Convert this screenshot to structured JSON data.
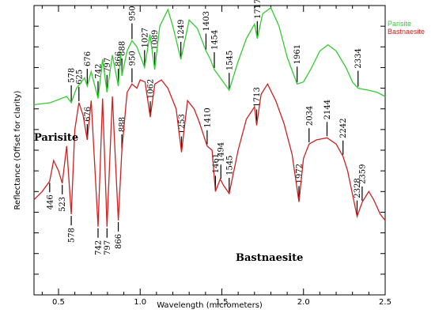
{
  "chart_data": {
    "type": "line",
    "xlabel": "Wavelength (micrometers)",
    "ylabel": "Reflectance (Offset for clarity)",
    "xlim": [
      0.35,
      2.5
    ],
    "x_ticks": [
      "0.5",
      "1.0",
      "1.5",
      "2.0",
      "2.5"
    ],
    "x_tick_values": [
      0.5,
      1.0,
      1.5,
      2.0,
      2.5
    ],
    "ylim": [
      0,
      14
    ],
    "legend_position": "top-right",
    "series": [
      {
        "name": "Parisite",
        "color": "#33cc33",
        "curve_label": "Parisite",
        "points": [
          [
            0.35,
            9.2
          ],
          [
            0.45,
            9.3
          ],
          [
            0.55,
            9.6
          ],
          [
            0.578,
            9.3
          ],
          [
            0.61,
            10.0
          ],
          [
            0.66,
            10.5
          ],
          [
            0.676,
            10.1
          ],
          [
            0.7,
            10.8
          ],
          [
            0.742,
            9.5
          ],
          [
            0.77,
            11.4
          ],
          [
            0.797,
            9.8
          ],
          [
            0.83,
            11.6
          ],
          [
            0.866,
            10.1
          ],
          [
            0.88,
            11.7
          ],
          [
            0.888,
            10.6
          ],
          [
            0.92,
            11.8
          ],
          [
            0.95,
            12.3
          ],
          [
            0.98,
            12.0
          ],
          [
            1.027,
            11.0
          ],
          [
            1.06,
            12.6
          ],
          [
            1.089,
            10.9
          ],
          [
            1.12,
            13.0
          ],
          [
            1.17,
            13.8
          ],
          [
            1.2,
            13.0
          ],
          [
            1.249,
            11.4
          ],
          [
            1.3,
            13.3
          ],
          [
            1.35,
            12.9
          ],
          [
            1.403,
            11.8
          ],
          [
            1.43,
            11.4
          ],
          [
            1.454,
            10.9
          ],
          [
            1.5,
            10.4
          ],
          [
            1.545,
            9.9
          ],
          [
            1.6,
            11.3
          ],
          [
            1.65,
            12.4
          ],
          [
            1.7,
            13.1
          ],
          [
            1.717,
            12.4
          ],
          [
            1.75,
            13.6
          ],
          [
            1.8,
            13.9
          ],
          [
            1.85,
            13.0
          ],
          [
            1.9,
            11.5
          ],
          [
            1.961,
            10.2
          ],
          [
            2.0,
            10.3
          ],
          [
            2.05,
            11.0
          ],
          [
            2.1,
            11.8
          ],
          [
            2.15,
            12.1
          ],
          [
            2.2,
            11.8
          ],
          [
            2.26,
            11.0
          ],
          [
            2.3,
            10.3
          ],
          [
            2.334,
            10.0
          ],
          [
            2.4,
            9.9
          ],
          [
            2.45,
            9.8
          ],
          [
            2.5,
            9.6
          ]
        ],
        "annotations": [
          {
            "x": 0.578,
            "label": "578"
          },
          {
            "x": 0.676,
            "label": "676"
          },
          {
            "x": 0.742,
            "label": "742"
          },
          {
            "x": 0.797,
            "label": "797"
          },
          {
            "x": 0.866,
            "label": "866"
          },
          {
            "x": 0.888,
            "label": "888"
          },
          {
            "x": 0.95,
            "label": "950"
          },
          {
            "x": 1.027,
            "label": "1027"
          },
          {
            "x": 1.089,
            "label": "1089"
          },
          {
            "x": 1.249,
            "label": "1249"
          },
          {
            "x": 1.403,
            "label": "1403"
          },
          {
            "x": 1.454,
            "label": "1454"
          },
          {
            "x": 1.545,
            "label": "1545"
          },
          {
            "x": 1.717,
            "label": "1717"
          },
          {
            "x": 1.961,
            "label": "1961"
          },
          {
            "x": 2.334,
            "label": "2334"
          }
        ]
      },
      {
        "name": "Bastnaesite",
        "color": "#cc2222",
        "curve_label": "Bastnaesite",
        "points": [
          [
            0.35,
            4.6
          ],
          [
            0.4,
            5.0
          ],
          [
            0.446,
            5.5
          ],
          [
            0.47,
            6.5
          ],
          [
            0.5,
            6.0
          ],
          [
            0.523,
            5.4
          ],
          [
            0.55,
            7.2
          ],
          [
            0.578,
            3.9
          ],
          [
            0.6,
            8.0
          ],
          [
            0.625,
            9.3
          ],
          [
            0.65,
            8.7
          ],
          [
            0.676,
            7.5
          ],
          [
            0.7,
            9.4
          ],
          [
            0.742,
            3.3
          ],
          [
            0.77,
            9.5
          ],
          [
            0.797,
            3.3
          ],
          [
            0.83,
            9.6
          ],
          [
            0.866,
            3.6
          ],
          [
            0.888,
            7.0
          ],
          [
            0.92,
            9.8
          ],
          [
            0.95,
            10.2
          ],
          [
            0.98,
            10.0
          ],
          [
            1.0,
            10.4
          ],
          [
            1.03,
            10.3
          ],
          [
            1.062,
            8.6
          ],
          [
            1.09,
            10.2
          ],
          [
            1.13,
            10.4
          ],
          [
            1.17,
            10.0
          ],
          [
            1.22,
            9.0
          ],
          [
            1.253,
            6.9
          ],
          [
            1.29,
            9.4
          ],
          [
            1.33,
            9.0
          ],
          [
            1.36,
            8.4
          ],
          [
            1.41,
            7.2
          ],
          [
            1.44,
            7.0
          ],
          [
            1.461,
            5.0
          ],
          [
            1.49,
            5.6
          ],
          [
            1.51,
            5.3
          ],
          [
            1.545,
            4.9
          ],
          [
            1.6,
            7.0
          ],
          [
            1.65,
            8.5
          ],
          [
            1.7,
            9.1
          ],
          [
            1.713,
            8.2
          ],
          [
            1.74,
            9.7
          ],
          [
            1.78,
            10.2
          ],
          [
            1.83,
            9.4
          ],
          [
            1.88,
            8.3
          ],
          [
            1.93,
            6.8
          ],
          [
            1.972,
            4.5
          ],
          [
            2.0,
            6.6
          ],
          [
            2.034,
            7.3
          ],
          [
            2.08,
            7.5
          ],
          [
            2.144,
            7.6
          ],
          [
            2.2,
            7.3
          ],
          [
            2.242,
            6.7
          ],
          [
            2.27,
            6.0
          ],
          [
            2.328,
            3.8
          ],
          [
            2.36,
            4.5
          ],
          [
            2.4,
            5.0
          ],
          [
            2.43,
            4.6
          ],
          [
            2.47,
            3.9
          ],
          [
            2.5,
            3.6
          ]
        ],
        "annotations": [
          {
            "x": 0.446,
            "label": "446"
          },
          {
            "x": 0.523,
            "label": "523"
          },
          {
            "x": 0.578,
            "label": "578"
          },
          {
            "x": 0.625,
            "label": "625"
          },
          {
            "x": 0.676,
            "label": "676"
          },
          {
            "x": 0.742,
            "label": "742"
          },
          {
            "x": 0.797,
            "label": "797"
          },
          {
            "x": 0.866,
            "label": "866"
          },
          {
            "x": 0.888,
            "label": "888"
          },
          {
            "x": 0.95,
            "label": "950"
          },
          {
            "x": 1.062,
            "label": "1062"
          },
          {
            "x": 1.253,
            "label": "1253"
          },
          {
            "x": 1.41,
            "label": "1410"
          },
          {
            "x": 1.461,
            "label": "1461"
          },
          {
            "x": 1.494,
            "label": "1494"
          },
          {
            "x": 1.545,
            "label": "1545"
          },
          {
            "x": 1.713,
            "label": "1713"
          },
          {
            "x": 1.972,
            "label": "1972"
          },
          {
            "x": 2.034,
            "label": "2034"
          },
          {
            "x": 2.144,
            "label": "2144"
          },
          {
            "x": 2.242,
            "label": "2242"
          },
          {
            "x": 2.328,
            "label": "2328"
          },
          {
            "x": 2.359,
            "label": "2359"
          }
        ]
      }
    ]
  }
}
